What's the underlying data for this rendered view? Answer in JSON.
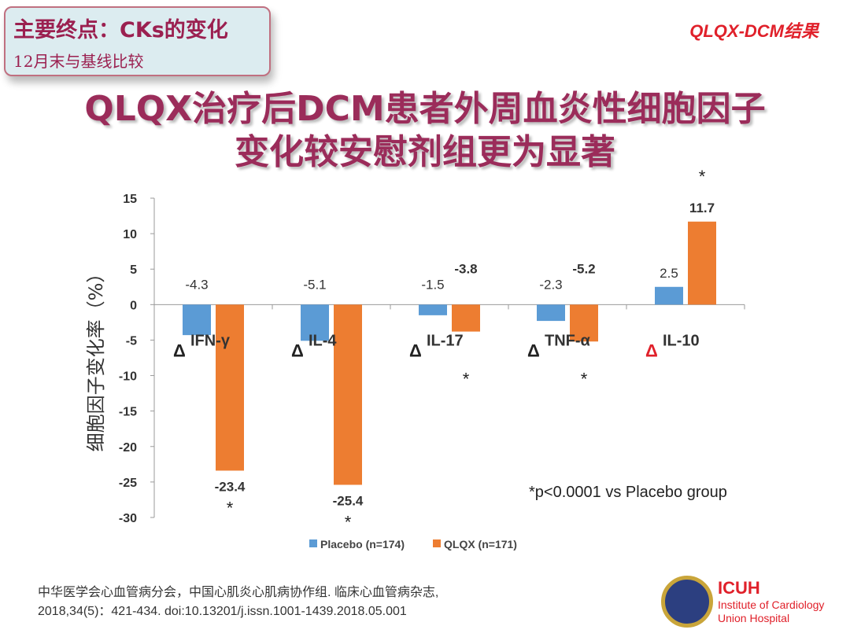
{
  "header": {
    "box_title": "主要终点：CKs的变化",
    "box_subtitle": "12月末与基线比较",
    "tag": "QLQX-DCM结果"
  },
  "title_lines": [
    "QLQX治疗后DCM患者外周血炎性细胞因子",
    "变化较安慰剂组更为显著"
  ],
  "chart_data": {
    "type": "bar",
    "categories": [
      "IFN-γ",
      "IL-4",
      "IL-17",
      "TNF-α",
      "IL-10"
    ],
    "category_prefix": "Δ",
    "series": [
      {
        "name": "Placebo (n=174)",
        "values": [
          -4.3,
          -5.1,
          -1.5,
          -2.3,
          2.5
        ],
        "color": "#5b9bd5"
      },
      {
        "name": "QLQX (n=171)",
        "values": [
          -23.4,
          -25.4,
          -3.8,
          -5.2,
          11.7
        ],
        "color": "#ed7d31"
      }
    ],
    "significance": [
      "*",
      "*",
      "*",
      "*",
      "*"
    ],
    "ylabel": "细胞因子变化率（%）",
    "ylim": [
      -30,
      15
    ],
    "yticks": [
      15,
      10,
      5,
      0,
      -5,
      -10,
      -15,
      -20,
      -25,
      -30
    ],
    "legend": "bottom",
    "annotation": "*p<0.0001 vs Placebo group",
    "delta_colors": [
      "#222222",
      "#222222",
      "#222222",
      "#222222",
      "#e0202a"
    ]
  },
  "reference": [
    "中华医学会心血管病分会，中国心肌炎心肌病协作组. 临床心血管病杂志,",
    "2018,34(5)：421-434. doi:10.13201/j.issn.1001-1439.2018.05.001"
  ],
  "logo": {
    "name": "ICUH",
    "line1": "Institute of Cardiology",
    "line2": "Union Hospital"
  }
}
